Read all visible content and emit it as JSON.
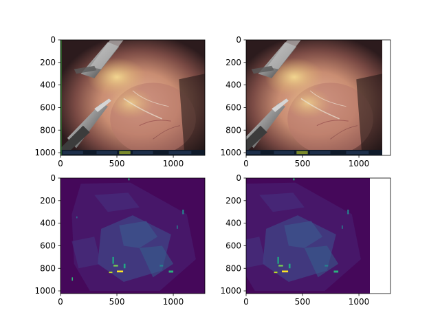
{
  "chart_data": [
    {
      "type": "image",
      "panel": "top-left",
      "content": "surgical endoscope frame: two metal instruments over pink/yellow tissue, dark surroundings, status bar along bottom",
      "colormap": "rgb",
      "xlim": [
        0,
        1280
      ],
      "ylim": [
        1024,
        0
      ],
      "xticks": [
        0,
        500,
        1000
      ],
      "yticks": [
        0,
        200,
        400,
        600,
        800,
        1000
      ],
      "grid": false
    },
    {
      "type": "image",
      "panel": "top-right",
      "content": "surgical endoscope frame (right stereo view): instruments shifted slightly left relative to left view",
      "colormap": "rgb",
      "xlim": [
        0,
        1280
      ],
      "ylim": [
        1024,
        0
      ],
      "xticks": [
        0,
        500,
        1000
      ],
      "yticks": [
        0,
        200,
        400,
        600,
        800,
        1000
      ],
      "grid": false
    },
    {
      "type": "heatmap",
      "panel": "bottom-left",
      "content": "sparse disparity/depth map, mostly low values, few bright yellow-green spots",
      "colormap": "viridis",
      "xlim": [
        0,
        1280
      ],
      "ylim": [
        1024,
        0
      ],
      "xticks": [
        0,
        500,
        1000
      ],
      "yticks": [
        0,
        200,
        400,
        600,
        800,
        1000
      ],
      "grid": false
    },
    {
      "type": "heatmap",
      "panel": "bottom-right",
      "content": "sparse disparity/depth map (second view), mostly low values, few bright spots",
      "colormap": "viridis",
      "xlim": [
        0,
        1280
      ],
      "ylim": [
        1024,
        0
      ],
      "xticks": [
        0,
        500,
        1000
      ],
      "yticks": [
        0,
        200,
        400,
        600,
        800,
        1000
      ],
      "grid": false
    }
  ]
}
